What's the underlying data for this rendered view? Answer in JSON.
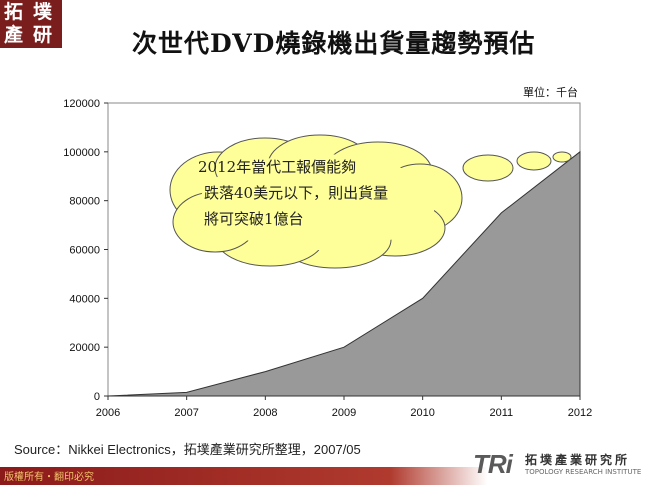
{
  "logo": {
    "chars": [
      "拓",
      "墣",
      "產",
      "研"
    ]
  },
  "slide": {
    "title": "次世代DVD燒錄機出貨量趨勢預估",
    "unit": "單位：千台",
    "source": "Source：Nikkei Electronics，拓墣產業研究所整理，2007/05",
    "copyright": "版權所有・翻印必究",
    "brand_mark": "TRi",
    "brand_name": "拓墣產業研究所",
    "brand_sub": "TOPOLOGY RESEARCH INSTITUTE"
  },
  "callout": {
    "lines": [
      "2012年當代工報價能夠",
      "跌落40美元以下，則出貨量",
      "將可突破1億台"
    ]
  },
  "colors": {
    "area_fill": "#999999",
    "plot_bg": "#ffffff",
    "bubble_fill": "#ffff99",
    "brand": "#8b1a1a"
  },
  "chart_data": {
    "type": "area",
    "title": "",
    "xlabel": "",
    "ylabel": "",
    "x": [
      2006,
      2007,
      2008,
      2009,
      2010,
      2011,
      2012
    ],
    "series": [
      {
        "values": [
          0,
          1500,
          10000,
          20000,
          40000,
          75000,
          100000
        ]
      }
    ],
    "ylim": [
      0,
      120000
    ],
    "yticks": [
      0,
      20000,
      40000,
      60000,
      80000,
      100000,
      120000
    ],
    "grid": false,
    "legend": "none"
  }
}
